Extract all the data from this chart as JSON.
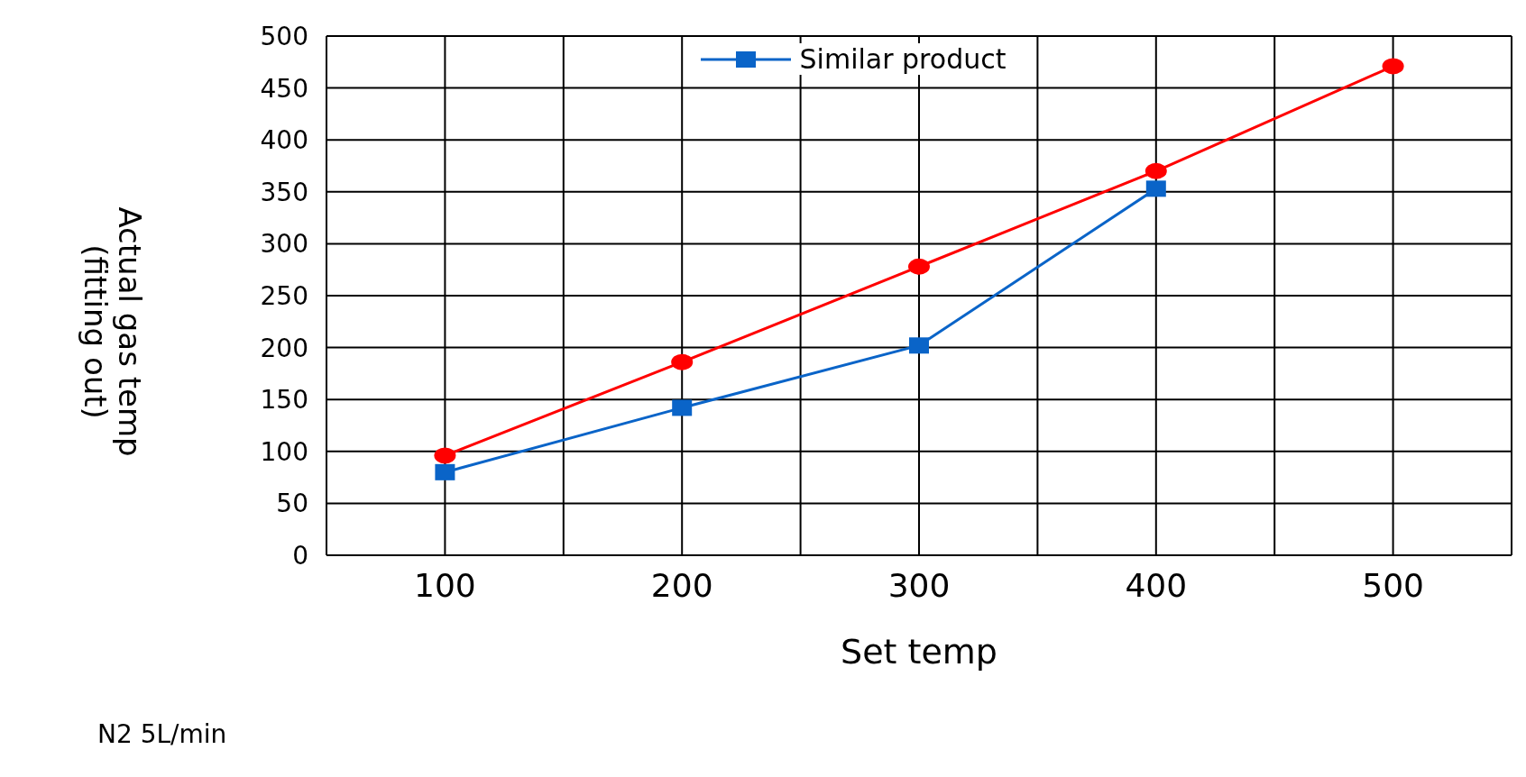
{
  "chart_data": {
    "type": "line",
    "xlabel": "Set temp",
    "ylabel": "Actual gas temp\n(fitting out)",
    "x": [
      100,
      200,
      300,
      400,
      500
    ],
    "series": [
      {
        "name": "Similar product",
        "color": "#0a64c8",
        "marker": "square",
        "values": [
          80,
          142,
          202,
          353,
          null
        ]
      },
      {
        "color": "#ff0000",
        "marker": "circle",
        "values": [
          96,
          186,
          278,
          370,
          471
        ]
      }
    ],
    "xlim": [
      50,
      550
    ],
    "xticks": [
      {
        "value": 50,
        "label": null
      },
      100,
      {
        "value": 150,
        "label": null
      },
      200,
      {
        "value": 250,
        "label": null
      },
      300,
      {
        "value": 350,
        "label": null
      },
      400,
      {
        "value": 450,
        "label": null
      },
      500,
      {
        "value": 550,
        "label": null
      }
    ],
    "ylim": [
      0,
      500
    ],
    "yticks": [
      0,
      50,
      100,
      150,
      200,
      250,
      300,
      350,
      400,
      450,
      500
    ],
    "grid": true,
    "legend": "top",
    "annotations": [
      "N2  5L/min"
    ]
  }
}
